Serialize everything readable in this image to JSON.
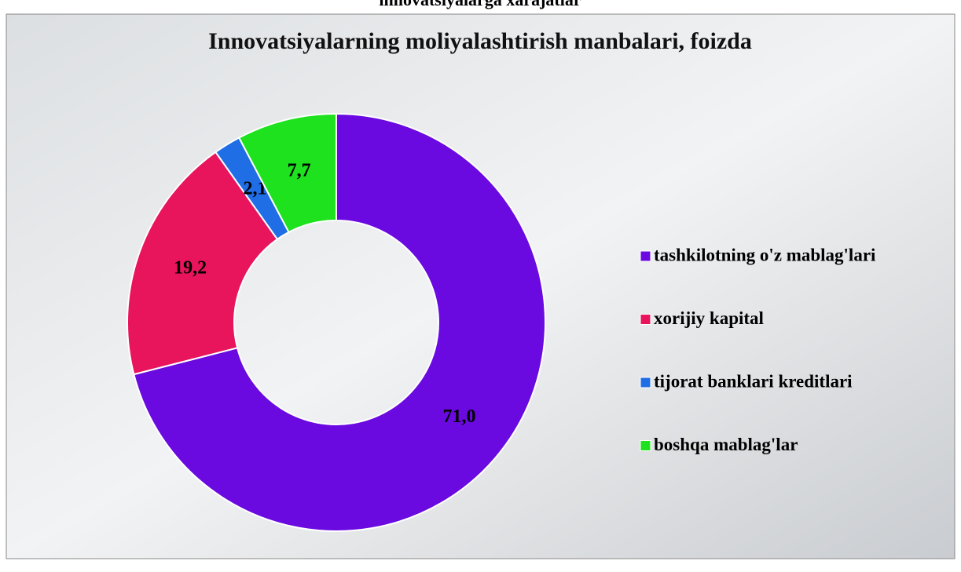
{
  "page_caption": "innovatsiyalarga xarajatlar",
  "chart_data": {
    "type": "donut",
    "title": "Innovatsiyalarning moliyalashtirish manbalari, foizda",
    "categories": [
      "tashkilotning o'z mablag'lari",
      "xorijiy kapital",
      "tijorat banklari kreditlari",
      "boshqa mablag'lar"
    ],
    "values": [
      71.0,
      19.2,
      2.1,
      7.7
    ],
    "value_labels": [
      "71,0",
      "19,2",
      "2,1",
      "7,7"
    ],
    "colors": [
      "#6a0ae0",
      "#e8145c",
      "#1f6ee6",
      "#1ee21e"
    ],
    "legend": "right"
  }
}
